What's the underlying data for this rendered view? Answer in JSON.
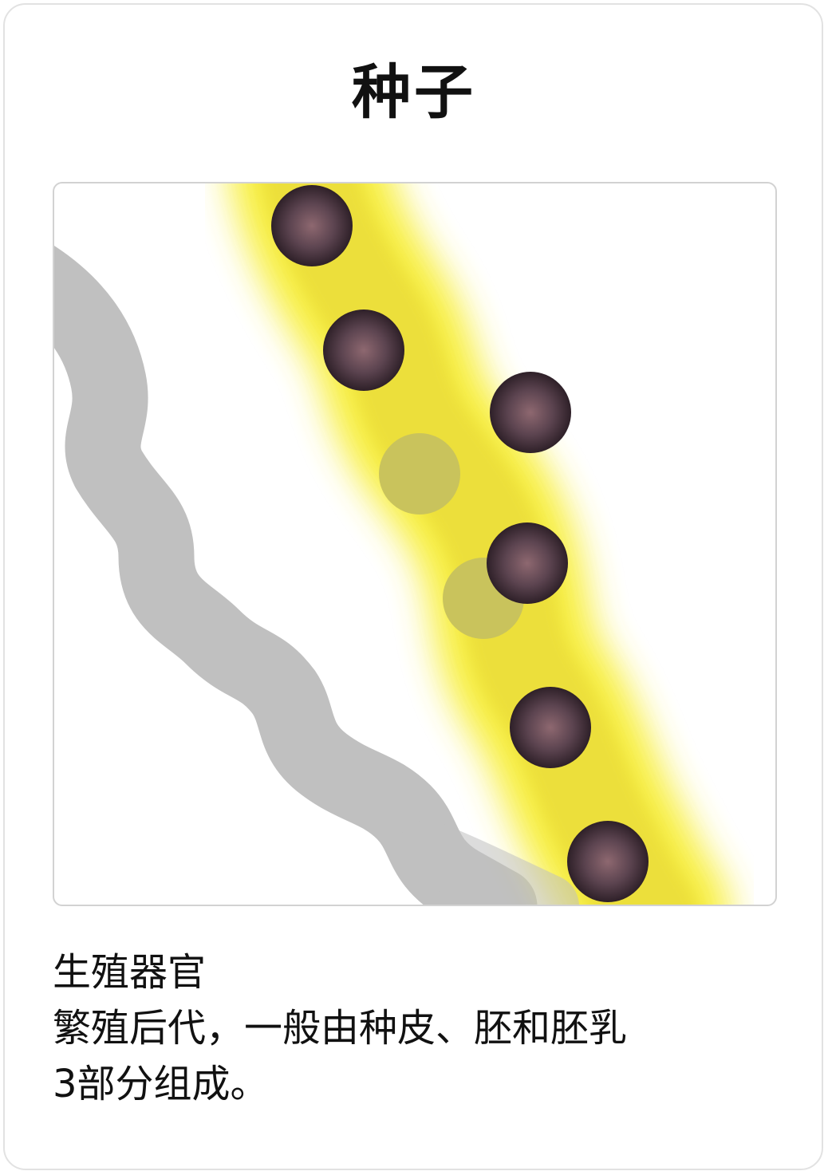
{
  "card": {
    "title": "种子",
    "description_lines": [
      "生殖器官",
      "繁殖后代，一般由种皮、胚和胚乳",
      "3部分组成。"
    ]
  },
  "illustration": {
    "subject": "seed",
    "colors": {
      "pod_glow": "#f7ee38",
      "pod_body": "#ecdf3a",
      "branch": "#c0c0c0",
      "seed_dark": "#3a2a34",
      "seed_highlight": "#8e6870",
      "seed_empty": "#c9c35c"
    }
  }
}
